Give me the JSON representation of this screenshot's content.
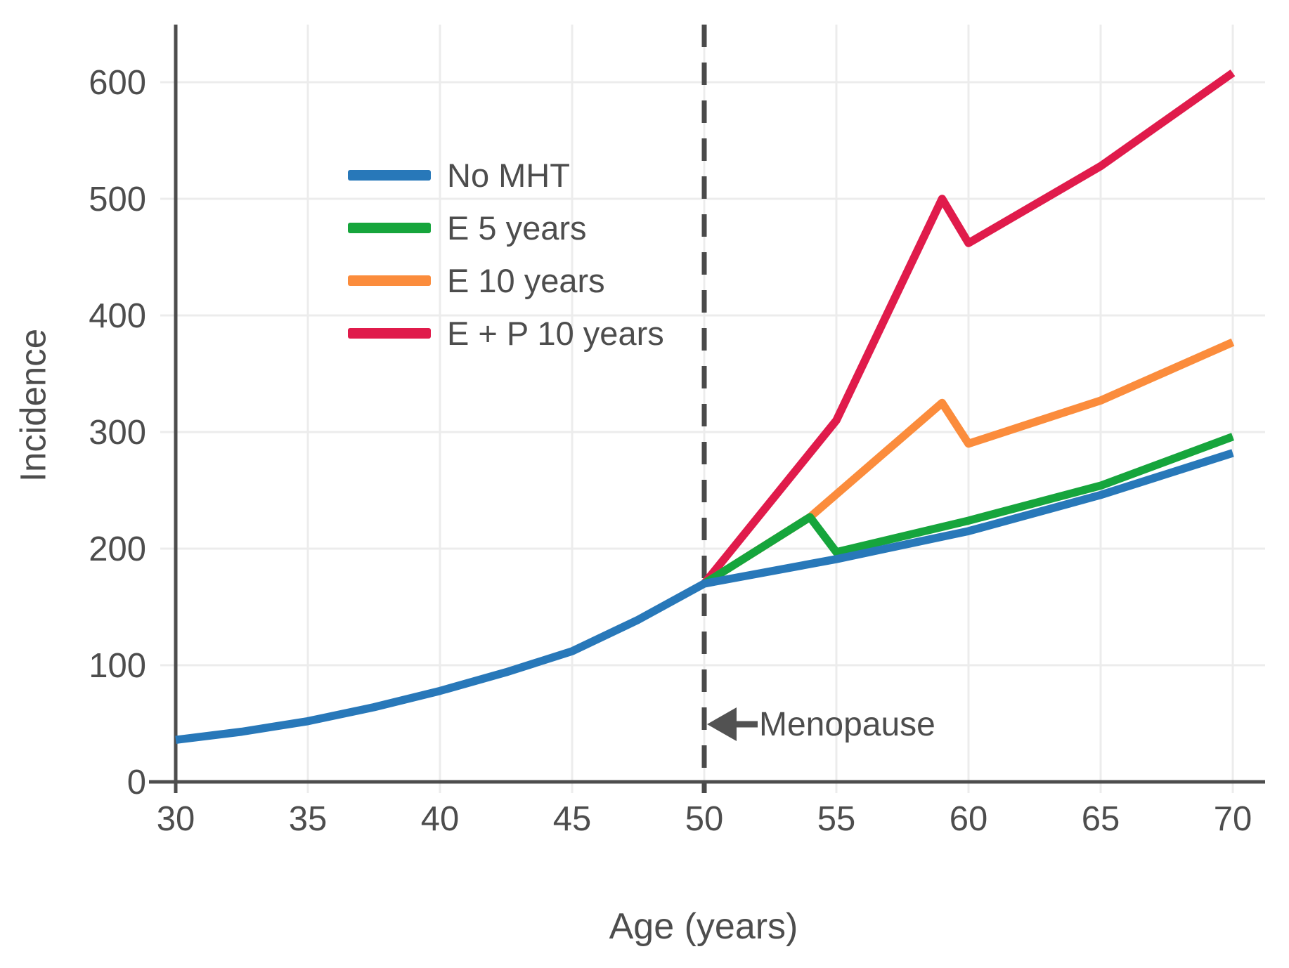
{
  "chart_data": {
    "type": "line",
    "title": "",
    "xlabel": "Age (years)",
    "ylabel": "Incidence",
    "x_ticks": [
      30,
      35,
      40,
      45,
      50,
      55,
      60,
      65,
      70
    ],
    "y_ticks": [
      0,
      100,
      200,
      300,
      400,
      500,
      600
    ],
    "xlim": [
      30,
      70
    ],
    "ylim": [
      0,
      650
    ],
    "grid": true,
    "legend_position": "upper-left-inside",
    "axis_color": "#4d4d4d",
    "grid_color": "#ececec",
    "tick_color": "#e2e2e2",
    "annotation": {
      "text": "Menopause",
      "x": 50,
      "arrow_direction": "left",
      "arrow_color": "#525252"
    },
    "menopause_line": {
      "x": 50,
      "style": "dashed",
      "color": "#4a4a4a"
    },
    "series": [
      {
        "name": "No MHT",
        "color": "#2878b9",
        "points": [
          [
            30,
            36
          ],
          [
            32.5,
            43
          ],
          [
            35,
            52
          ],
          [
            37.5,
            64
          ],
          [
            40,
            78
          ],
          [
            42.5,
            94
          ],
          [
            45,
            112
          ],
          [
            47.5,
            139
          ],
          [
            50,
            170
          ],
          [
            55,
            191
          ],
          [
            60,
            215
          ],
          [
            65,
            246
          ],
          [
            70,
            282
          ]
        ]
      },
      {
        "name": "E 5 years",
        "color": "#16a53c",
        "points": [
          [
            50,
            170
          ],
          [
            54,
            227
          ],
          [
            55,
            197
          ],
          [
            60,
            224
          ],
          [
            65,
            254
          ],
          [
            70,
            296
          ]
        ]
      },
      {
        "name": "E 10 years",
        "color": "#fb8c3c",
        "points": [
          [
            50,
            170
          ],
          [
            54,
            227
          ],
          [
            59,
            325
          ],
          [
            60,
            290
          ],
          [
            65,
            327
          ],
          [
            70,
            377
          ]
        ]
      },
      {
        "name": "E + P 10 years",
        "color": "#e01b4b",
        "points": [
          [
            50,
            170
          ],
          [
            55,
            310
          ],
          [
            59,
            500
          ],
          [
            60,
            462
          ],
          [
            65,
            528
          ],
          [
            70,
            608
          ]
        ]
      }
    ]
  }
}
